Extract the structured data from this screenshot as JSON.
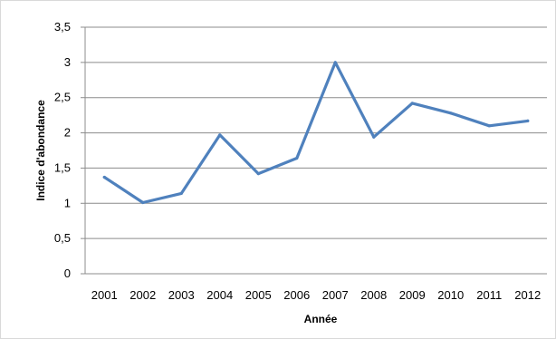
{
  "chart_data": {
    "type": "line",
    "title": "",
    "xlabel": "Année",
    "ylabel": "Indice d'abondance",
    "x": [
      "2001",
      "2002",
      "2003",
      "2004",
      "2005",
      "2006",
      "2007",
      "2008",
      "2009",
      "2010",
      "2011",
      "2012"
    ],
    "series": [
      {
        "values": [
          1.37,
          1.01,
          1.14,
          1.97,
          1.42,
          1.64,
          3.0,
          1.94,
          2.42,
          2.28,
          2.1,
          2.17
        ]
      }
    ],
    "ylim": [
      0,
      3.5
    ],
    "yticks": [
      "0",
      "0,5",
      "1",
      "1,5",
      "2",
      "2,5",
      "3",
      "3,5"
    ],
    "grid": true,
    "legend": "none",
    "colors": {
      "line": "#4f81bd",
      "grid": "#8c8c8c"
    }
  }
}
